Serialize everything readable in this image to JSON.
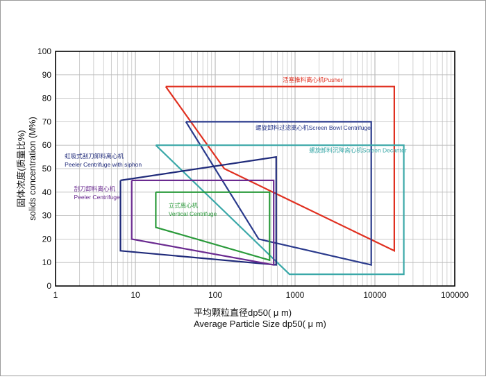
{
  "chart_data": {
    "type": "line",
    "xscale": "log",
    "xlim": [
      1,
      100000
    ],
    "ylim": [
      0,
      100
    ],
    "grid": true,
    "x_ticks": [
      "1",
      "10",
      "100",
      "1000",
      "10000",
      "100000"
    ],
    "y_ticks": [
      "0",
      "10",
      "20",
      "30",
      "40",
      "50",
      "60",
      "70",
      "80",
      "90",
      "100"
    ],
    "xlabel_cn": "平均颗粒直径dp50( μ m)",
    "xlabel_en": "Average Particle Size dp50( μ m)",
    "ylabel_cn": "固体浓度(质量比%)",
    "ylabel_en": "solids concentration (M%)",
    "series": [
      {
        "name": "活塞推料离心机Pusher",
        "color": "#e03020",
        "points": [
          [
            24,
            85
          ],
          [
            17500,
            85
          ],
          [
            17500,
            15
          ],
          [
            130,
            50
          ],
          [
            24,
            85
          ]
        ]
      },
      {
        "name": "螺旋卸料过滤离心机Screen Bowl Centrifuge",
        "color": "#2a3a8c",
        "points": [
          [
            43,
            70
          ],
          [
            9000,
            70
          ],
          [
            9000,
            9
          ],
          [
            350,
            20
          ],
          [
            43,
            70
          ]
        ]
      },
      {
        "name": "螺旋卸料沉降离心机Screen Decanter",
        "color": "#3aa8a8",
        "points": [
          [
            18,
            60
          ],
          [
            23000,
            60
          ],
          [
            23000,
            5
          ],
          [
            850,
            5
          ],
          [
            18,
            60
          ]
        ]
      },
      {
        "name": "虹吸式刮刀卸料离心机 Peeler Centrifuge with siphon",
        "color": "#1f2a7a",
        "points": [
          [
            6.5,
            45
          ],
          [
            580,
            55
          ],
          [
            580,
            9
          ],
          [
            6.5,
            15
          ],
          [
            6.5,
            45
          ]
        ]
      },
      {
        "name": "刮刀卸料离心机 Peeler Centrifuge",
        "color": "#6a2a90",
        "points": [
          [
            9,
            45
          ],
          [
            540,
            45
          ],
          [
            540,
            9
          ],
          [
            9,
            20
          ],
          [
            9,
            45
          ]
        ]
      },
      {
        "name": "立式离心机 Vertical Centrifuge",
        "color": "#2a9a3a",
        "points": [
          [
            18,
            40
          ],
          [
            480,
            40
          ],
          [
            480,
            11
          ],
          [
            18,
            25
          ],
          [
            18,
            40
          ]
        ]
      }
    ],
    "labels": [
      {
        "series": 0,
        "lines": [
          "活塞推料离心机Pusher"
        ],
        "x": 700,
        "y": 87
      },
      {
        "series": 1,
        "lines": [
          "螺旋卸料过滤离心机Screen Bowl Centrifuge"
        ],
        "x": 320,
        "y": 66.5
      },
      {
        "series": 2,
        "lines": [
          "螺旋卸料沉降离心机Screen Decanter"
        ],
        "x": 1500,
        "y": 57
      },
      {
        "series": 3,
        "lines": [
          "虹吸式刮刀卸料离心机",
          "Peeler Centrifuge with siphon"
        ],
        "x": 1.3,
        "y": 54.5
      },
      {
        "series": 4,
        "lines": [
          "刮刀卸料离心机",
          "Peeler Centrifuge"
        ],
        "x": 1.7,
        "y": 40.5
      },
      {
        "series": 5,
        "lines": [
          "立式离心机",
          "Vertical Centrifuge"
        ],
        "x": 26,
        "y": 33.5
      }
    ]
  }
}
